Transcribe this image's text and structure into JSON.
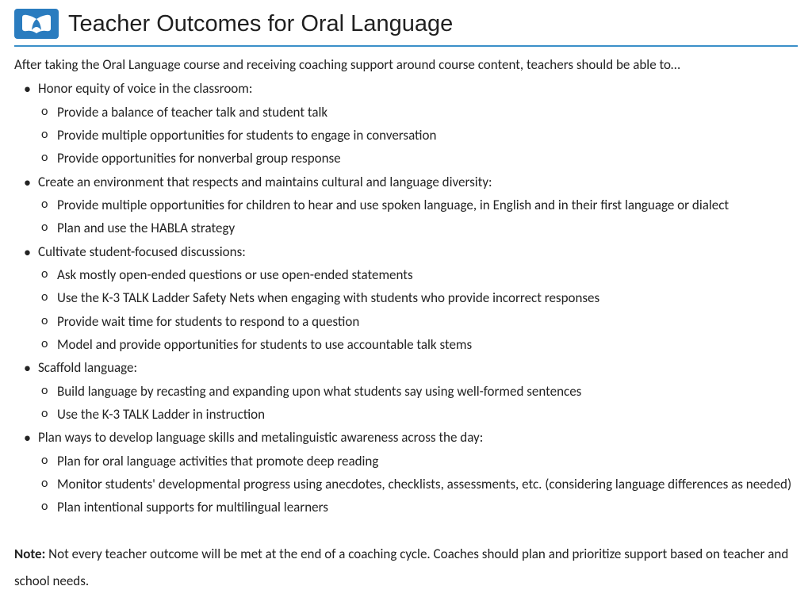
{
  "header": {
    "title": "Teacher Outcomes for Oral Language",
    "accent_color": "#3a8fc9",
    "logo_bg": "#2a7cbf"
  },
  "intro": "After taking the Oral Language course and receiving coaching support around course content, teachers should be able to…",
  "outcomes": [
    {
      "label": "Honor equity of voice in the classroom:",
      "subs": [
        "Provide a balance of teacher talk and student talk",
        "Provide multiple opportunities for students to engage in conversation",
        "Provide opportunities for nonverbal group response"
      ]
    },
    {
      "label": "Create an environment that respects and maintains cultural and language diversity:",
      "subs": [
        "Provide multiple opportunities for children to hear and use spoken language, in English and in their first language or dialect",
        "Plan and use the HABLA strategy"
      ]
    },
    {
      "label": "Cultivate student-focused discussions:",
      "subs": [
        "Ask mostly open-ended questions or use open-ended statements",
        "Use the K-3 TALK Ladder Safety Nets when engaging with students who provide incorrect responses",
        "Provide wait time for students to respond to a question",
        "Model and provide opportunities for students to use accountable talk stems"
      ]
    },
    {
      "label": "Scaffold language:",
      "subs": [
        "Build language by recasting and expanding upon what students say using well-formed sentences",
        "Use the K-3 TALK Ladder in instruction"
      ]
    },
    {
      "label": "Plan ways to develop language skills and metalinguistic awareness across the day:",
      "subs": [
        "Plan for oral language activities that promote deep reading",
        "Monitor students' developmental progress using anecdotes, checklists, assessments, etc. (considering language differences as needed)",
        "Plan intentional supports for multilingual learners"
      ]
    }
  ],
  "note": {
    "label": "Note:",
    "text": " Not every teacher outcome will be met at the end of a coaching cycle. Coaches should plan and prioritize support based on teacher and school needs."
  }
}
